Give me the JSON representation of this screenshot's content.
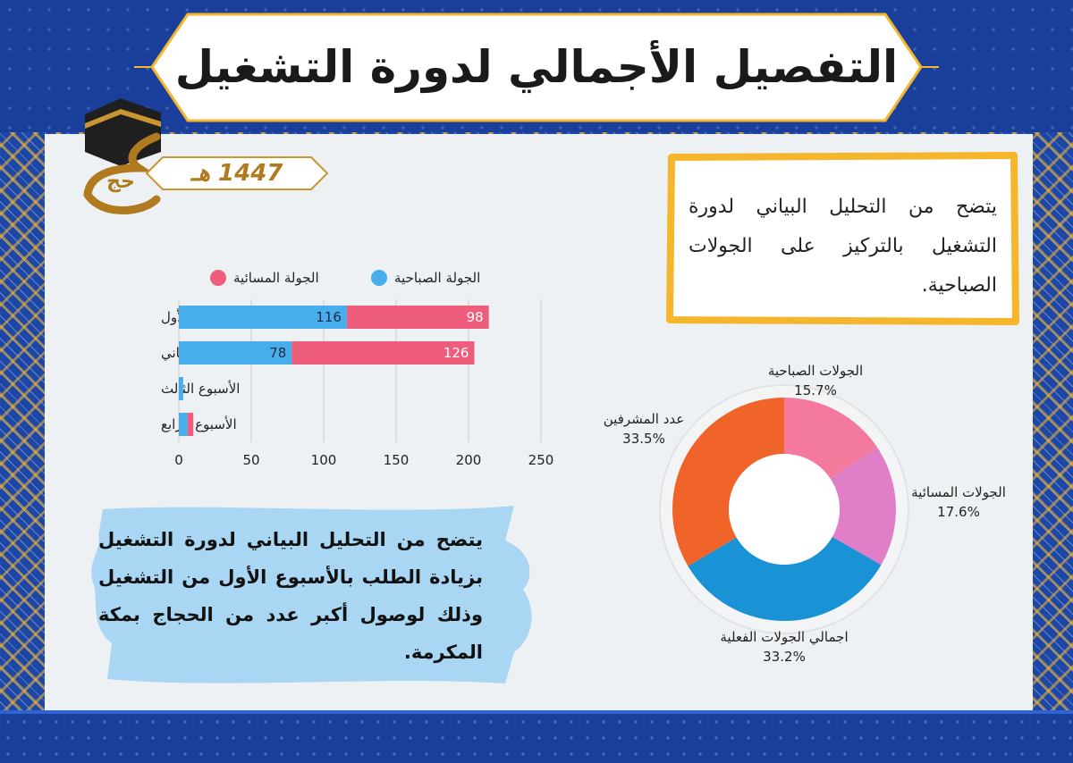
{
  "header": {
    "title": "التفصيل الأجمالي لدورة التشغيل",
    "logo_label": "حج",
    "year_label": "1447 هـ"
  },
  "colors": {
    "header_blue": "#1a3f9b",
    "accent_gold": "#f5b62b",
    "morning_blue": "#48aeeb",
    "evening_pink": "#ee5d7c",
    "panel": "#eef1f4"
  },
  "top_note": {
    "text": "يتضح من التحليل البياني لدورة التشغيل بالتركيز على الجولات الصباحية."
  },
  "bottom_note": {
    "text": "يتضح من التحليل البياني لدورة التشغيل بزيادة الطلب بالأسبوع الأول من التشغيل وذلك لوصول أكبر عدد من الحجاج بمكة المكرمة."
  },
  "chart_data": [
    {
      "type": "bar",
      "orientation": "horizontal",
      "stacked": true,
      "categories": [
        "الأسبوع الأول",
        "الأسبوع الثاني",
        "الأسبوع الثالث",
        "الأسبوع الرابع"
      ],
      "series": [
        {
          "name": "الجولة الصباحية",
          "color": "#48aeeb",
          "values": [
            116,
            78,
            3,
            6
          ],
          "labels": [
            "116",
            "78",
            "",
            ""
          ]
        },
        {
          "name": "الجولة المسائية",
          "color": "#ee5d7c",
          "values": [
            98,
            126,
            0,
            4
          ],
          "labels": [
            "98",
            "126",
            "",
            ""
          ]
        }
      ],
      "xlim": [
        0,
        250
      ],
      "xticks": [
        "0",
        "50",
        "100",
        "150",
        "200",
        "250"
      ],
      "grid": true,
      "legend_position": "top"
    },
    {
      "type": "pie",
      "donut": true,
      "slices": [
        {
          "label": "الجولات الصباحية",
          "value": 15.7,
          "pct": "15.7%",
          "color": "#f37a9c"
        },
        {
          "label": "الجولات المسائية",
          "value": 17.6,
          "pct": "17.6%",
          "color": "#e07fc8"
        },
        {
          "label": "اجمالي الجولات الفعلية",
          "value": 33.2,
          "pct": "33.2%",
          "color": "#1a92d6"
        },
        {
          "label": "عدد المشرفين",
          "value": 33.5,
          "pct": "33.5%",
          "color": "#f0642a"
        }
      ]
    }
  ]
}
